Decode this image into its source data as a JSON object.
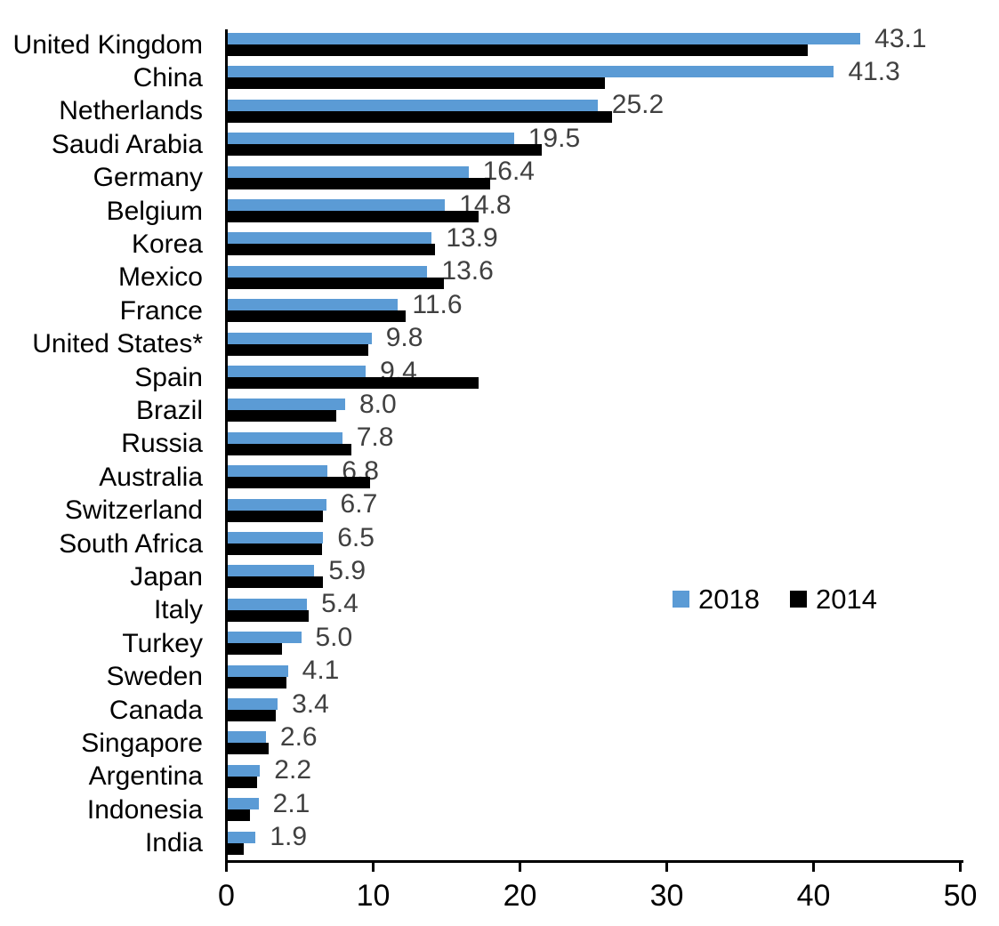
{
  "chart_data": {
    "type": "bar",
    "orientation": "horizontal",
    "title": "",
    "xlabel": "",
    "ylabel": "",
    "xlim": [
      0,
      50
    ],
    "x_ticks": [
      "0",
      "10",
      "20",
      "30",
      "40",
      "50"
    ],
    "grid": false,
    "legend_position": "middle-right",
    "categories": [
      "United Kingdom",
      "China",
      "Netherlands",
      "Saudi Arabia",
      "Germany",
      "Belgium",
      "Korea",
      "Mexico",
      "France",
      "United States*",
      "Spain",
      "Brazil",
      "Russia",
      "Australia",
      "Switzerland",
      "South Africa",
      "Japan",
      "Italy",
      "Turkey",
      "Sweden",
      "Canada",
      "Singapore",
      "Argentina",
      "Indonesia",
      "India"
    ],
    "series": [
      {
        "name": "2018",
        "color": "#5B9BD5",
        "values": [
          43.1,
          41.3,
          25.2,
          19.5,
          16.4,
          14.8,
          13.9,
          13.6,
          11.6,
          9.8,
          9.4,
          8.0,
          7.8,
          6.8,
          6.7,
          6.5,
          5.9,
          5.4,
          5.0,
          4.1,
          3.4,
          2.6,
          2.2,
          2.1,
          1.9
        ]
      },
      {
        "name": "2014",
        "color": "#000000",
        "values": [
          39.5,
          25.7,
          26.2,
          21.4,
          17.9,
          17.1,
          14.1,
          14.7,
          12.1,
          9.6,
          17.1,
          7.4,
          8.4,
          9.7,
          6.5,
          6.4,
          6.5,
          5.5,
          3.7,
          4.0,
          3.3,
          2.8,
          2.0,
          1.5,
          1.1
        ]
      }
    ],
    "data_labels": {
      "labeled_series": "2018",
      "values": [
        "43.1",
        "41.3",
        "25.2",
        "19.5",
        "16.4",
        "14.8",
        "13.9",
        "13.6",
        "11.6",
        "9.8",
        "9.4",
        "8.0",
        "7.8",
        "6.8",
        "6.7",
        "6.5",
        "5.9",
        "5.4",
        "5.0",
        "4.1",
        "3.4",
        "2.6",
        "2.2",
        "2.1",
        "1.9"
      ]
    }
  },
  "legend": {
    "items": [
      {
        "label": "2018",
        "color": "#5B9BD5"
      },
      {
        "label": "2014",
        "color": "#000000"
      }
    ]
  },
  "colors": {
    "series_2018": "#5B9BD5",
    "series_2014": "#000000",
    "value_label": "#404040",
    "axis": "#000000",
    "background": "#FFFFFF"
  }
}
